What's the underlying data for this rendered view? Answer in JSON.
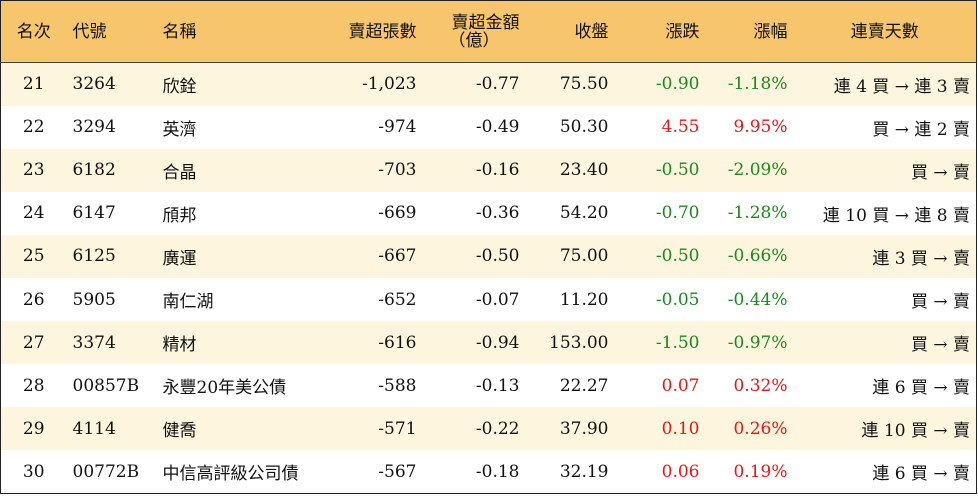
{
  "headers": {
    "rank": "名次",
    "code": "代號",
    "name": "名稱",
    "net_sell_shares": "賣超張數",
    "net_sell_amount_line1": "賣超金額",
    "net_sell_amount_line2": "（億）",
    "close": "收盤",
    "change": "漲跌",
    "change_pct": "漲幅",
    "streak": "連賣天數"
  },
  "rows": [
    {
      "rank": "21",
      "code": "3264",
      "name": "欣銓",
      "shares": "-1,023",
      "amount": "-0.77",
      "close": "75.50",
      "change": "-0.90",
      "pct": "-1.18%",
      "dir": "down",
      "streak": "連 4 買 → 連 3 賣"
    },
    {
      "rank": "22",
      "code": "3294",
      "name": "英濟",
      "shares": "-974",
      "amount": "-0.49",
      "close": "50.30",
      "change": "4.55",
      "pct": "9.95%",
      "dir": "up",
      "streak": "買 → 連 2 賣"
    },
    {
      "rank": "23",
      "code": "6182",
      "name": "合晶",
      "shares": "-703",
      "amount": "-0.16",
      "close": "23.40",
      "change": "-0.50",
      "pct": "-2.09%",
      "dir": "down",
      "streak": "買 → 賣"
    },
    {
      "rank": "24",
      "code": "6147",
      "name": "頎邦",
      "shares": "-669",
      "amount": "-0.36",
      "close": "54.20",
      "change": "-0.70",
      "pct": "-1.28%",
      "dir": "down",
      "streak": "連 10 買 → 連 8 賣"
    },
    {
      "rank": "25",
      "code": "6125",
      "name": "廣運",
      "shares": "-667",
      "amount": "-0.50",
      "close": "75.00",
      "change": "-0.50",
      "pct": "-0.66%",
      "dir": "down",
      "streak": "連 3 買 → 賣"
    },
    {
      "rank": "26",
      "code": "5905",
      "name": "南仁湖",
      "shares": "-652",
      "amount": "-0.07",
      "close": "11.20",
      "change": "-0.05",
      "pct": "-0.44%",
      "dir": "down",
      "streak": "買 → 賣"
    },
    {
      "rank": "27",
      "code": "3374",
      "name": "精材",
      "shares": "-616",
      "amount": "-0.94",
      "close": "153.00",
      "change": "-1.50",
      "pct": "-0.97%",
      "dir": "down",
      "streak": "買 → 賣"
    },
    {
      "rank": "28",
      "code": "00857B",
      "name": "永豐20年美公債",
      "shares": "-588",
      "amount": "-0.13",
      "close": "22.27",
      "change": "0.07",
      "pct": "0.32%",
      "dir": "up",
      "streak": "連 6 買 → 賣"
    },
    {
      "rank": "29",
      "code": "4114",
      "name": "健喬",
      "shares": "-571",
      "amount": "-0.22",
      "close": "37.90",
      "change": "0.10",
      "pct": "0.26%",
      "dir": "up",
      "streak": "連 10 買 → 賣"
    },
    {
      "rank": "30",
      "code": "00772B",
      "name": "中信高評級公司債",
      "shares": "-567",
      "amount": "-0.18",
      "close": "32.19",
      "change": "0.06",
      "pct": "0.19%",
      "dir": "up",
      "streak": "連 6 買 → 賣"
    }
  ],
  "colors": {
    "header_bg": "#f7c56b",
    "stripe_bg": "#fdf5dd",
    "up": "#e01919",
    "down": "#1a8a1a"
  }
}
